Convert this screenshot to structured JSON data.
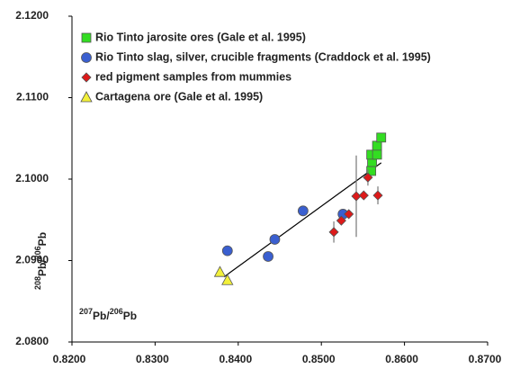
{
  "chart_data": {
    "type": "scatter",
    "xlabel_parts": [
      "207",
      "Pb/",
      "206",
      "Pb"
    ],
    "ylabel_parts": [
      "208",
      "Pb/",
      "206",
      "Pb"
    ],
    "xlim": [
      0.82,
      0.87
    ],
    "ylim": [
      2.08,
      2.12
    ],
    "xticks": [
      {
        "value": 0.82,
        "label": "0.8200"
      },
      {
        "value": 0.83,
        "label": "0.8300"
      },
      {
        "value": 0.84,
        "label": "0.8400"
      },
      {
        "value": 0.85,
        "label": "0.8500"
      },
      {
        "value": 0.86,
        "label": "0.8600"
      },
      {
        "value": 0.87,
        "label": "0.8700"
      }
    ],
    "yticks": [
      {
        "value": 2.08,
        "label": "2.0800"
      },
      {
        "value": 2.09,
        "label": "2.0900"
      },
      {
        "value": 2.1,
        "label": "2.1000"
      },
      {
        "value": 2.11,
        "label": "2.1100"
      },
      {
        "value": 2.12,
        "label": "2.1200"
      }
    ],
    "legend": "upper left",
    "series": [
      {
        "name": "Rio Tinto jarosite ores (Gale et al. 1995)",
        "color": "#33dd22",
        "marker": "square",
        "x": [
          0.856,
          0.8561,
          0.856,
          0.8567,
          0.8567,
          0.8572
        ],
        "values": [
          2.101,
          2.1021,
          2.103,
          2.1041,
          2.103,
          2.1051
        ]
      },
      {
        "name": "Rio Tinto slag, silver, crucible fragments (Craddock et al. 1995)",
        "color": "#3a5fd0",
        "marker": "circle",
        "x": [
          0.8387,
          0.8436,
          0.8444,
          0.8478,
          0.8526
        ],
        "values": [
          2.0912,
          2.0905,
          2.0926,
          2.0961,
          2.0957
        ]
      },
      {
        "name": "red pigment samples from mummies",
        "color": "#dd1a1a",
        "marker": "diamond",
        "x": [
          0.8515,
          0.8524,
          0.8533,
          0.8542,
          0.8551,
          0.8568,
          0.8556
        ],
        "values": [
          2.0935,
          2.0949,
          2.0957,
          2.0979,
          2.098,
          2.098,
          2.1002
        ],
        "errors": [
          0.0013,
          null,
          null,
          0.005,
          null,
          0.0011,
          0.001
        ]
      },
      {
        "name": "Cartagena ore (Gale et al. 1995)",
        "color": "#f2f03a",
        "marker": "triangle",
        "x": [
          0.8378,
          0.8387
        ],
        "values": [
          2.0886,
          2.0876
        ]
      }
    ],
    "trend_line": {
      "x": [
        0.8383,
        0.8572
      ],
      "y": [
        2.088,
        2.102
      ]
    }
  }
}
